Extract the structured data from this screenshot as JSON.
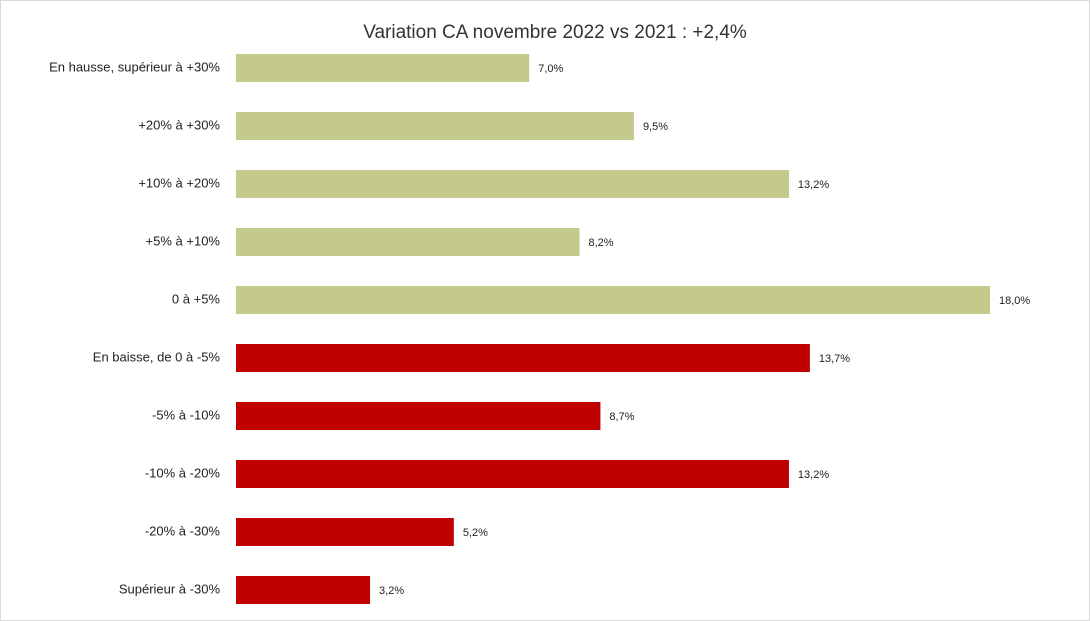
{
  "chart_data": {
    "type": "bar",
    "orientation": "horizontal",
    "title": "Variation CA novembre 2022 vs 2021 : +2,4%",
    "categories": [
      "En hausse, supérieur à +30%",
      "+20% à +30%",
      "+10% à +20%",
      "+5% à +10%",
      "0 à +5%",
      "En baisse, de 0 à -5%",
      "-5% à -10%",
      "-10% à -20%",
      "-20% à -30%",
      "Supérieur à -30%"
    ],
    "values": [
      7.0,
      9.5,
      13.2,
      8.2,
      18.0,
      13.7,
      8.7,
      13.2,
      5.2,
      3.2
    ],
    "value_labels": [
      "7,0%",
      "9,5%",
      "13,2%",
      "8,2%",
      "18,0%",
      "13,7%",
      "8,7%",
      "13,2%",
      "5,2%",
      "3,2%"
    ],
    "colors": [
      "#c4c98c",
      "#c4c98c",
      "#c4c98c",
      "#c4c98c",
      "#c4c98c",
      "#c00000",
      "#c00000",
      "#c00000",
      "#c00000",
      "#c00000"
    ],
    "xlim": [
      0,
      18
    ]
  }
}
